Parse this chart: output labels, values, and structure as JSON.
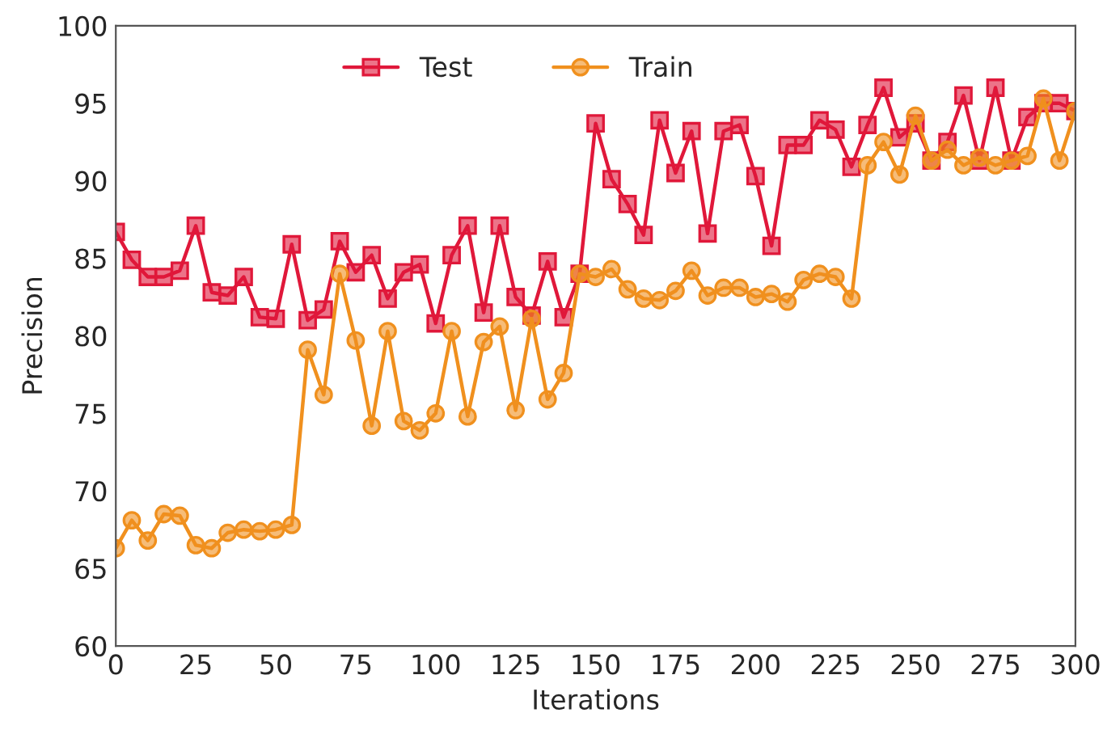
{
  "chart_data": {
    "type": "line",
    "xlabel": "Iterations",
    "ylabel": "Precision",
    "x": [
      0,
      5,
      10,
      15,
      20,
      25,
      30,
      35,
      40,
      45,
      50,
      55,
      60,
      65,
      70,
      75,
      80,
      85,
      90,
      95,
      100,
      105,
      110,
      115,
      120,
      125,
      130,
      135,
      140,
      145,
      150,
      155,
      160,
      165,
      170,
      175,
      180,
      185,
      190,
      195,
      200,
      205,
      210,
      215,
      220,
      225,
      230,
      235,
      240,
      245,
      250,
      255,
      260,
      265,
      270,
      275,
      280,
      285,
      290,
      295,
      300
    ],
    "series": [
      {
        "name": "Test",
        "color": "#e0183a",
        "marker": "square",
        "values": [
          86.7,
          84.9,
          83.8,
          83.8,
          84.2,
          87.1,
          82.8,
          82.6,
          83.8,
          81.2,
          81.1,
          85.9,
          81.0,
          81.7,
          86.1,
          84.1,
          85.2,
          82.4,
          84.1,
          84.6,
          80.8,
          85.2,
          87.1,
          81.5,
          87.1,
          82.5,
          81.3,
          84.8,
          81.2,
          84.0,
          93.7,
          90.1,
          88.5,
          86.5,
          93.9,
          90.5,
          93.2,
          86.6,
          93.2,
          93.6,
          90.3,
          85.8,
          92.3,
          92.3,
          93.9,
          93.3,
          90.9,
          93.6,
          96.0,
          92.8,
          93.7,
          91.3,
          92.5,
          95.5,
          91.3,
          96.0,
          91.3,
          94.1,
          95.0,
          95.0,
          94.5
        ]
      },
      {
        "name": "Train",
        "color": "#f0901e",
        "marker": "circle",
        "values": [
          66.3,
          68.1,
          66.8,
          68.5,
          68.4,
          66.5,
          66.3,
          67.3,
          67.5,
          67.4,
          67.5,
          67.8,
          79.1,
          76.2,
          84.0,
          79.7,
          74.2,
          80.3,
          74.5,
          73.9,
          75.0,
          80.3,
          74.8,
          79.6,
          80.6,
          75.2,
          81.1,
          75.9,
          77.6,
          84.0,
          83.8,
          84.3,
          83.0,
          82.4,
          82.3,
          82.9,
          84.2,
          82.6,
          83.1,
          83.1,
          82.5,
          82.7,
          82.2,
          83.6,
          84.0,
          83.8,
          82.4,
          91.0,
          92.5,
          90.4,
          94.2,
          91.3,
          92.0,
          91.0,
          91.5,
          91.0,
          91.3,
          91.6,
          95.3,
          91.3,
          94.5
        ]
      }
    ],
    "xlim": [
      0,
      300
    ],
    "xticks": [
      0,
      25,
      50,
      75,
      100,
      125,
      150,
      175,
      200,
      225,
      250,
      275,
      300
    ],
    "ylim": [
      60,
      100
    ],
    "yticks": [
      60,
      65,
      70,
      75,
      80,
      85,
      90,
      95,
      100
    ],
    "grid": false,
    "legend": "top",
    "line_style": "solid"
  }
}
